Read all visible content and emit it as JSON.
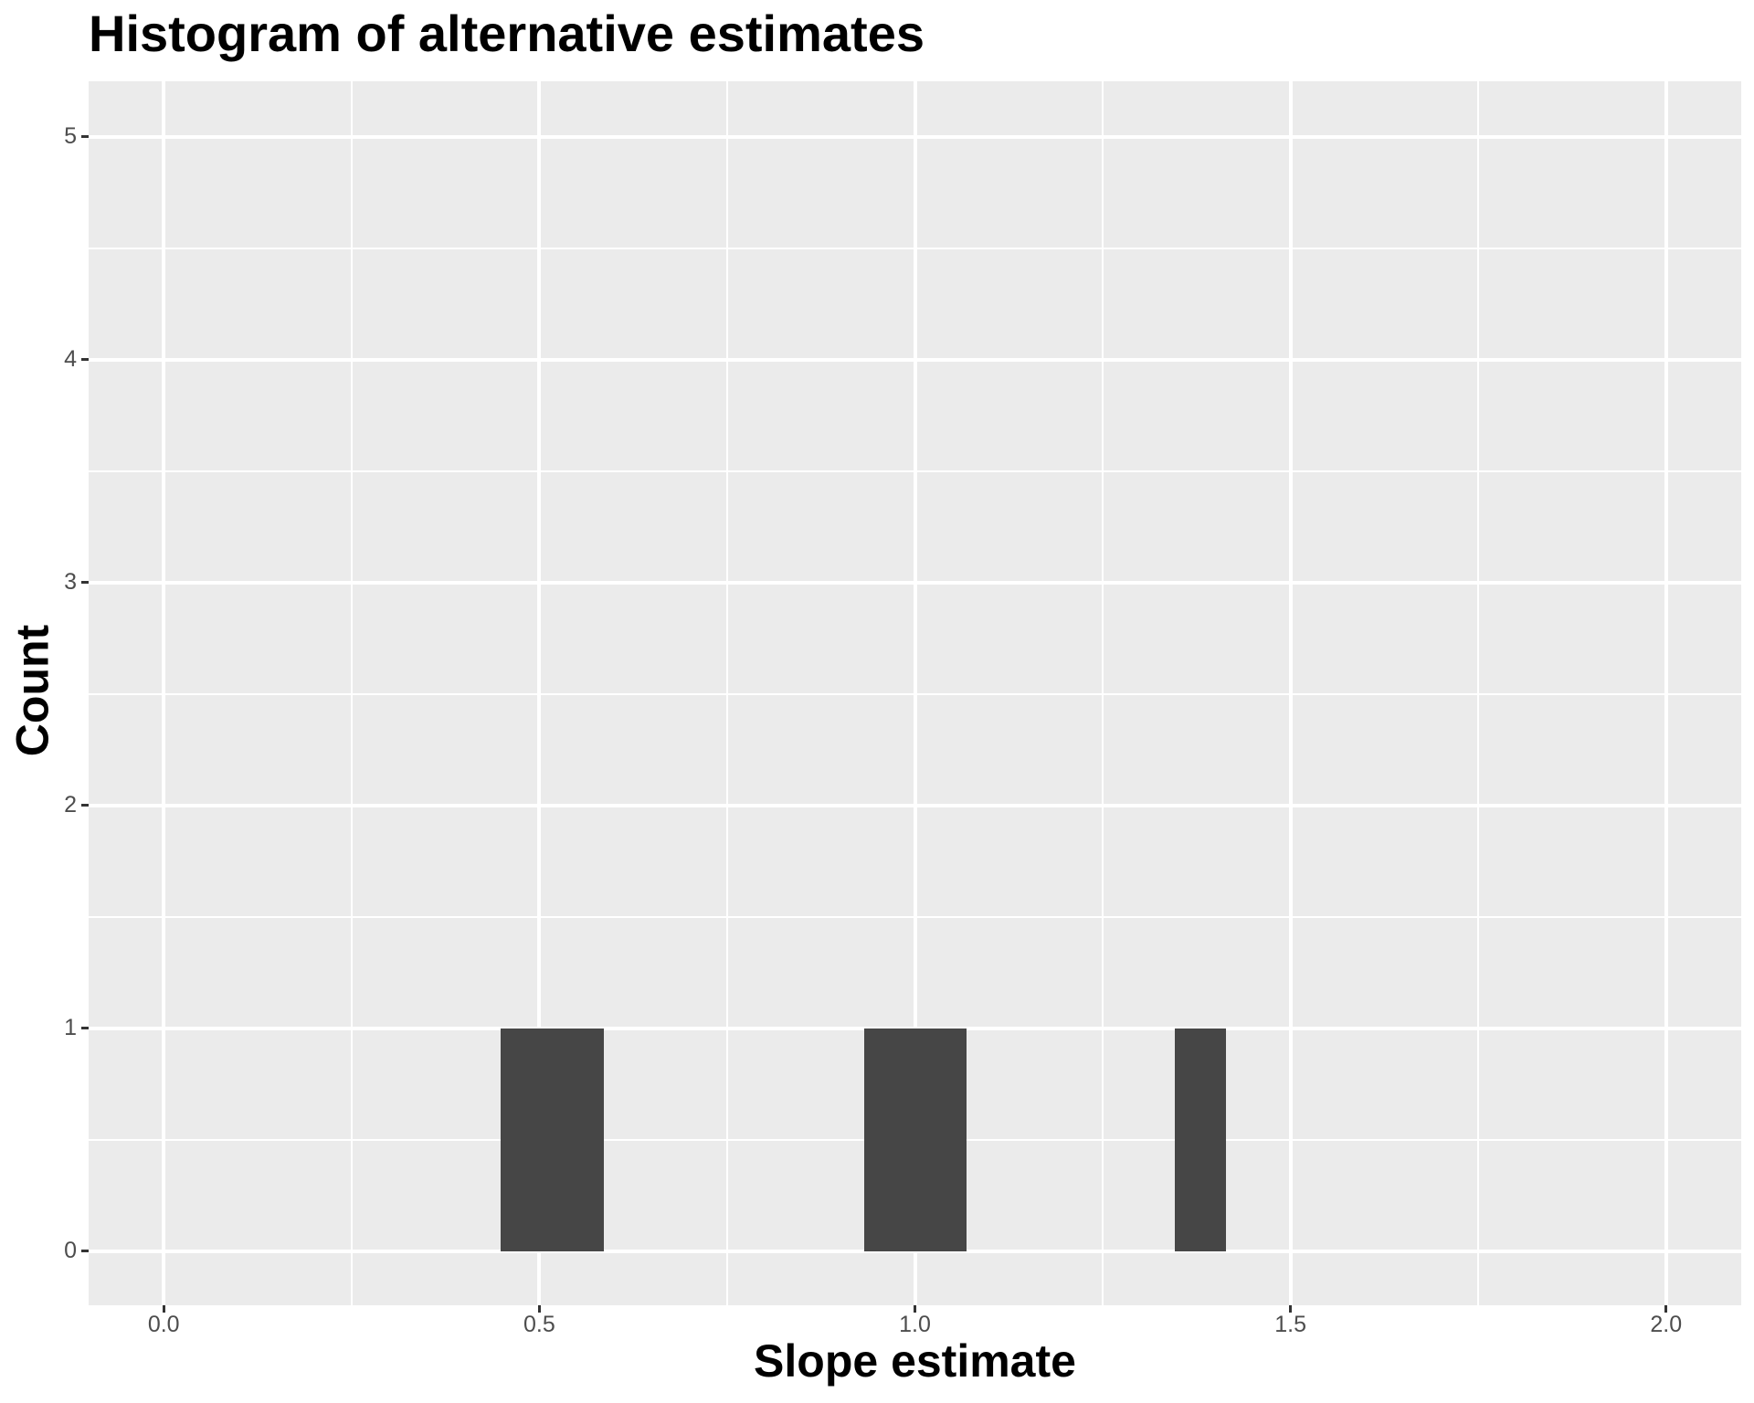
{
  "chart_data": {
    "type": "histogram",
    "title": "Histogram of alternative estimates",
    "xlabel": "Slope estimate",
    "ylabel": "Count",
    "legend": "none",
    "grid": true,
    "x_axis": {
      "range": [
        -0.1,
        2.1
      ],
      "ticks": [
        {
          "value": 0.0,
          "label": "0.0"
        },
        {
          "value": 0.5,
          "label": "0.5"
        },
        {
          "value": 1.0,
          "label": "1.0"
        },
        {
          "value": 1.5,
          "label": "1.5"
        },
        {
          "value": 2.0,
          "label": "2.0"
        }
      ],
      "minor_ticks": [
        0.25,
        0.75,
        1.25,
        1.75
      ]
    },
    "y_axis": {
      "range": [
        -0.242,
        5.25
      ],
      "ticks": [
        {
          "value": 0,
          "label": "0"
        },
        {
          "value": 1,
          "label": "1"
        },
        {
          "value": 2,
          "label": "2"
        },
        {
          "value": 3,
          "label": "3"
        },
        {
          "value": 4,
          "label": "4"
        },
        {
          "value": 5,
          "label": "5"
        }
      ],
      "minor_ticks": [
        0.5,
        1.5,
        2.5,
        3.5,
        4.5
      ]
    },
    "bars": [
      {
        "x_from": 0.449,
        "x_to": 0.586,
        "count": 1
      },
      {
        "x_from": 0.932,
        "x_to": 1.069,
        "count": 1
      },
      {
        "x_from": 1.346,
        "x_to": 1.414,
        "count": 1
      }
    ],
    "colors": {
      "panel_background": "#EBEBEB",
      "bar_fill": "#464646",
      "gridline_major": "#FFFFFF",
      "gridline_minor": "#FFFFFF",
      "tick_mark": "#333333",
      "tick_label_text": "#4D4D4D",
      "title_text": "#000000"
    }
  }
}
